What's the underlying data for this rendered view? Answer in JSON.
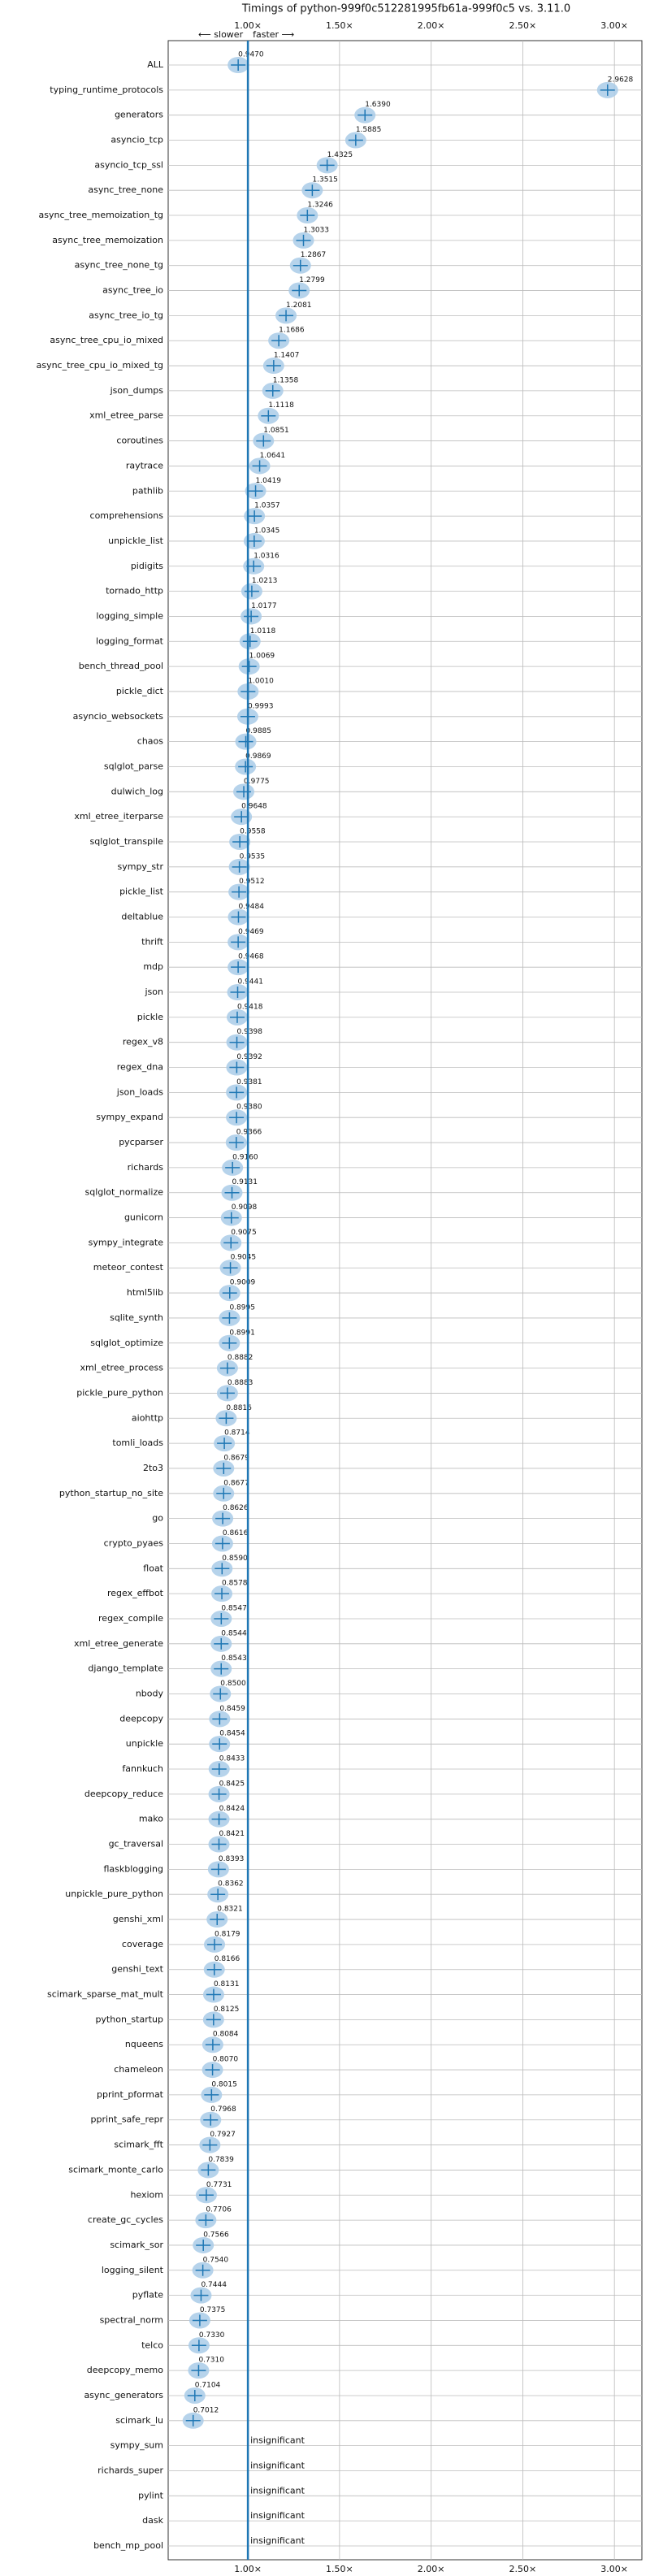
{
  "chart_data": {
    "type": "violin",
    "title": "Timings of python-999f0c512281995fb61a-999f0c5 vs. 3.11.0",
    "slower_label": "⟵ slower",
    "faster_label": "faster ⟶",
    "categories": [
      "ALL",
      "typing_runtime_protocols",
      "generators",
      "asyncio_tcp",
      "asyncio_tcp_ssl",
      "async_tree_none",
      "async_tree_memoization_tg",
      "async_tree_memoization",
      "async_tree_none_tg",
      "async_tree_io",
      "async_tree_io_tg",
      "async_tree_cpu_io_mixed",
      "async_tree_cpu_io_mixed_tg",
      "json_dumps",
      "xml_etree_parse",
      "coroutines",
      "raytrace",
      "pathlib",
      "comprehensions",
      "unpickle_list",
      "pidigits",
      "tornado_http",
      "logging_simple",
      "logging_format",
      "bench_thread_pool",
      "pickle_dict",
      "asyncio_websockets",
      "chaos",
      "sqlglot_parse",
      "dulwich_log",
      "xml_etree_iterparse",
      "sqlglot_transpile",
      "sympy_str",
      "pickle_list",
      "deltablue",
      "thrift",
      "mdp",
      "json",
      "pickle",
      "regex_v8",
      "regex_dna",
      "json_loads",
      "sympy_expand",
      "pycparser",
      "richards",
      "sqlglot_normalize",
      "gunicorn",
      "sympy_integrate",
      "meteor_contest",
      "html5lib",
      "sqlite_synth",
      "sqlglot_optimize",
      "xml_etree_process",
      "pickle_pure_python",
      "aiohttp",
      "tomli_loads",
      "2to3",
      "python_startup_no_site",
      "go",
      "crypto_pyaes",
      "float",
      "regex_effbot",
      "regex_compile",
      "xml_etree_generate",
      "django_template",
      "nbody",
      "deepcopy",
      "unpickle",
      "fannkuch",
      "deepcopy_reduce",
      "mako",
      "gc_traversal",
      "flaskblogging",
      "unpickle_pure_python",
      "genshi_xml",
      "coverage",
      "genshi_text",
      "scimark_sparse_mat_mult",
      "python_startup",
      "nqueens",
      "chameleon",
      "pprint_pformat",
      "pprint_safe_repr",
      "scimark_fft",
      "scimark_monte_carlo",
      "hexiom",
      "create_gc_cycles",
      "scimark_sor",
      "logging_silent",
      "pyflate",
      "spectral_norm",
      "telco",
      "deepcopy_memo",
      "async_generators",
      "scimark_lu",
      "sympy_sum",
      "richards_super",
      "pylint",
      "dask",
      "bench_mp_pool"
    ],
    "values": [
      0.947,
      2.9628,
      1.639,
      1.5885,
      1.4325,
      1.3515,
      1.3246,
      1.3033,
      1.2867,
      1.2799,
      1.2081,
      1.1686,
      1.1407,
      1.1358,
      1.1118,
      1.0851,
      1.0641,
      1.0419,
      1.0357,
      1.0345,
      1.0316,
      1.0213,
      1.0177,
      1.0118,
      1.0069,
      1.001,
      0.9993,
      0.9885,
      0.9869,
      0.9775,
      0.9648,
      0.9558,
      0.9535,
      0.9512,
      0.9484,
      0.9469,
      0.9468,
      0.9441,
      0.9418,
      0.9398,
      0.9392,
      0.9381,
      0.938,
      0.9366,
      0.916,
      0.9131,
      0.9098,
      0.9075,
      0.9045,
      0.9009,
      0.8995,
      0.8991,
      0.8882,
      0.8883,
      0.8816,
      0.8714,
      0.8679,
      0.8677,
      0.8626,
      0.8616,
      0.859,
      0.8578,
      0.8547,
      0.8544,
      0.8543,
      0.85,
      0.8459,
      0.8454,
      0.8433,
      0.8425,
      0.8424,
      0.8421,
      0.8393,
      0.8362,
      0.8321,
      0.8179,
      0.8166,
      0.8131,
      0.8125,
      0.8084,
      0.807,
      0.8015,
      0.7968,
      0.7927,
      0.7839,
      0.7731,
      0.7706,
      0.7566,
      0.754,
      0.7444,
      0.7375,
      0.733,
      0.731,
      0.7104,
      0.7012,
      null,
      null,
      null,
      null,
      null
    ],
    "value_labels": [
      "0.9470",
      "2.9628",
      "1.6390",
      "1.5885",
      "1.4325",
      "1.3515",
      "1.3246",
      "1.3033",
      "1.2867",
      "1.2799",
      "1.2081",
      "1.1686",
      "1.1407",
      "1.1358",
      "1.1118",
      "1.0851",
      "1.0641",
      "1.0419",
      "1.0357",
      "1.0345",
      "1.0316",
      "1.0213",
      "1.0177",
      "1.0118",
      "1.0069",
      "1.0010",
      "0.9993",
      "0.9885",
      "0.9869",
      "0.9775",
      "0.9648",
      "0.9558",
      "0.9535",
      "0.9512",
      "0.9484",
      "0.9469",
      "0.9468",
      "0.9441",
      "0.9418",
      "0.9398",
      "0.9392",
      "0.9381",
      "0.9380",
      "0.9366",
      "0.9160",
      "0.9131",
      "0.9098",
      "0.9075",
      "0.9045",
      "0.9009",
      "0.8995",
      "0.8991",
      "0.8882",
      "0.8883",
      "0.8816",
      "0.8714",
      "0.8679",
      "0.8677",
      "0.8626",
      "0.8616",
      "0.8590",
      "0.8578",
      "0.8547",
      "0.8544",
      "0.8543",
      "0.8500",
      "0.8459",
      "0.8454",
      "0.8433",
      "0.8425",
      "0.8424",
      "0.8421",
      "0.8393",
      "0.8362",
      "0.8321",
      "0.8179",
      "0.8166",
      "0.8131",
      "0.8125",
      "0.8084",
      "0.8070",
      "0.8015",
      "0.7968",
      "0.7927",
      "0.7839",
      "0.7731",
      "0.7706",
      "0.7566",
      "0.7540",
      "0.7444",
      "0.7375",
      "0.7330",
      "0.7310",
      "0.7104",
      "0.7012",
      "insignificant",
      "insignificant",
      "insignificant",
      "insignificant",
      "insignificant"
    ],
    "color": "#1f77b4",
    "fill_color": "#a9cbe8",
    "xlim": [
      0.565,
      3.15
    ],
    "xticks": [
      {
        "value": 1,
        "label": "1.00×"
      },
      {
        "value": 1.5,
        "label": "1.50×"
      },
      {
        "value": 2,
        "label": "2.00×"
      },
      {
        "value": 2.5,
        "label": "2.50×"
      },
      {
        "value": 3,
        "label": "3.00×"
      }
    ],
    "grid": true
  }
}
